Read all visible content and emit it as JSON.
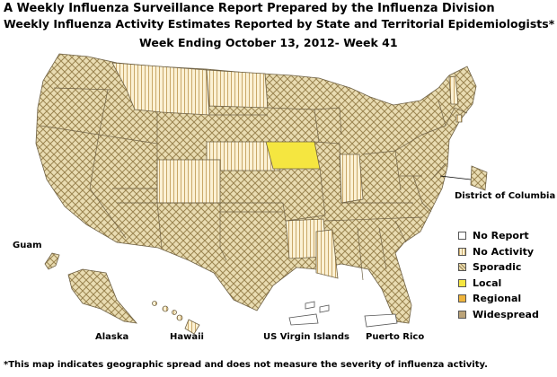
{
  "title": "A Weekly Influenza Surveillance Report Prepared by the Influenza Division",
  "subtitle": "Weekly Influenza Activity Estimates Reported by State and Territorial Epidemiologists*",
  "week": "Week Ending October 13, 2012- Week 41",
  "labels": {
    "dc": "District of Columbia",
    "guam": "Guam",
    "alaska": "Alaska",
    "hawaii": "Hawaii",
    "usvi": "US Virgin Islands",
    "pr": "Puerto Rico"
  },
  "legend": [
    {
      "label": "No Report",
      "color": "#ffffff"
    },
    {
      "label": "No Activity",
      "color": "#f5e7c4"
    },
    {
      "label": "Sporadic",
      "color": "#dccd98"
    },
    {
      "label": "Local",
      "color": "#f5e640"
    },
    {
      "label": "Regional",
      "color": "#efb43c"
    },
    {
      "label": "Widespread",
      "color": "#bba378"
    }
  ],
  "activity_levels": {
    "sporadic": [
      "Washington",
      "Oregon",
      "California",
      "Nevada",
      "Idaho",
      "Wyoming",
      "Utah",
      "Arizona",
      "New Mexico",
      "Texas",
      "Oklahoma",
      "Kansas",
      "Missouri",
      "Minnesota",
      "Wisconsin",
      "Michigan",
      "Illinois",
      "Ohio",
      "Kentucky",
      "Tennessee",
      "Alabama",
      "Georgia",
      "Florida",
      "South Carolina",
      "North Carolina",
      "Virginia",
      "West Virginia",
      "Pennsylvania",
      "New York",
      "Vermont",
      "Maine",
      "Massachusetts",
      "Connecticut",
      "New Jersey",
      "Maryland",
      "Delaware",
      "Louisiana",
      "South Dakota",
      "District of Columbia",
      "Guam",
      "Alaska"
    ],
    "no_activity": [
      "Montana",
      "North Dakota",
      "Nebraska",
      "Colorado",
      "Arkansas",
      "Mississippi",
      "Indiana",
      "New Hampshire",
      "Rhode Island",
      "Hawaii"
    ],
    "local": [
      "Iowa"
    ],
    "no_report": [
      "US Virgin Islands",
      "Puerto Rico"
    ]
  },
  "footnote": "*This map indicates geographic spread and does not measure the severity of influenza activity."
}
